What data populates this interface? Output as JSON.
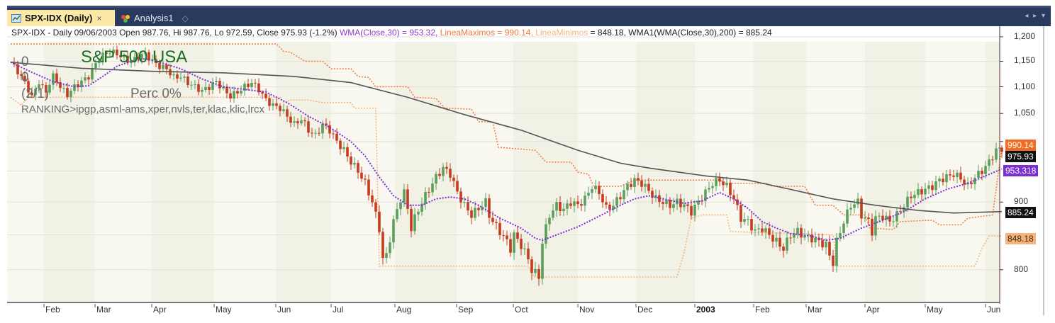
{
  "tabs": [
    {
      "label": "SPX-IDX (Daily)",
      "active": true,
      "icon": "chart-icon",
      "close": "×"
    },
    {
      "label": "Analysis1",
      "active": false,
      "icon": "analysis-icon",
      "pin": "◇"
    }
  ],
  "tab_nav": {
    "left": "◂",
    "right": "▸",
    "menu": "▾"
  },
  "legend": {
    "summary": "SPX-IDX - Daily 09/06/2003 Open 987.76, Hi 987.76, Lo 972.59, Close 975.93 (-1.2%)",
    "wma": "WMA(Close,30) = 953.32,",
    "lmax": "LineaMaximos = 990.14,",
    "lmin": "LineaMinimos",
    "lmin_val": "= 848.18, WMA1(WMA(Close,30),200) = 885.24"
  },
  "overlay": {
    "title": "S&P 500 USA",
    "zero1": "0",
    "zero2": "0",
    "ratio": "(2/1)",
    "perc": "Perc 0%",
    "ranking": "RANKING>ipgp,asml-ams,xper,nvls,ter,klac,klic,lrcx"
  },
  "colors": {
    "up": "#5c9e5c",
    "down": "#c43c1c",
    "wma": "#7b2fd0",
    "lmax": "#f07a3c",
    "lmin": "#f7b27a",
    "wma1": "#555555",
    "tabbar": "#2a3a5e",
    "active_tab": "#fce9a6"
  },
  "price_tags": [
    {
      "name": "linea-maximos-tag",
      "value": "990.14",
      "bg": "#f26b21",
      "fg": "#ffffff",
      "price": 990.14
    },
    {
      "name": "close-tag",
      "value": "975.93",
      "bg": "#111111",
      "fg": "#ffffff",
      "price": 975.93
    },
    {
      "name": "wma-tag",
      "value": "953.318",
      "bg": "#7b2fd0",
      "fg": "#ffffff",
      "price": 953.318
    },
    {
      "name": "wma1-tag",
      "value": "885.24",
      "bg": "#111111",
      "fg": "#ffffff",
      "price": 885.24
    },
    {
      "name": "linea-minimos-tag",
      "value": "848.18",
      "bg": "#f7b27a",
      "fg": "#3a2a10",
      "price": 848.18
    }
  ],
  "chart_data": {
    "type": "candlestick",
    "title": "S&P 500 USA",
    "symbol": "SPX-IDX",
    "interval": "Daily",
    "yaxis": {
      "ticks": [
        1200,
        1150,
        1100,
        1050,
        1000,
        900,
        800
      ],
      "tick_labels": [
        "1,200",
        "1,150",
        "1,100",
        "1,050",
        "",
        "900",
        "800"
      ],
      "range": [
        760,
        1210
      ]
    },
    "xaxis": {
      "tick_labels": [
        "Feb",
        "Mar",
        "Apr",
        "May",
        "Jun",
        "Jul",
        "Aug",
        "Sep",
        "Oct",
        "Nov",
        "Dec",
        "2003",
        "Feb",
        "Mar",
        "Apr",
        "May",
        "Jun"
      ]
    },
    "last_bar": {
      "date": "09/06/2003",
      "open": 987.76,
      "high": 987.76,
      "low": 972.59,
      "close": 975.93,
      "change_pct": -1.2
    },
    "series": [
      {
        "name": "WMA(Close,30)",
        "last": 953.32,
        "style": "dotted",
        "color": "#7b2fd0"
      },
      {
        "name": "LineaMaximos",
        "last": 990.14,
        "style": "dotted-step",
        "color": "#f07a3c"
      },
      {
        "name": "LineaMinimos",
        "last": 848.18,
        "style": "dotted-step",
        "color": "#f7b27a"
      },
      {
        "name": "WMA1(WMA(Close,30),200)",
        "last": 885.24,
        "style": "solid",
        "color": "#555555"
      }
    ],
    "close_path": [
      [
        0,
        1148
      ],
      [
        10,
        1130
      ],
      [
        20,
        1108
      ],
      [
        25,
        1095
      ],
      [
        30,
        1080
      ],
      [
        35,
        1095
      ],
      [
        40,
        1110
      ],
      [
        45,
        1098
      ],
      [
        50,
        1090
      ],
      [
        55,
        1108
      ],
      [
        60,
        1120
      ],
      [
        65,
        1112
      ],
      [
        70,
        1100
      ],
      [
        75,
        1092
      ],
      [
        80,
        1085
      ],
      [
        90,
        1100
      ],
      [
        100,
        1110
      ],
      [
        110,
        1120
      ],
      [
        120,
        1145
      ],
      [
        130,
        1162
      ],
      [
        140,
        1170
      ],
      [
        150,
        1165
      ],
      [
        160,
        1155
      ],
      [
        170,
        1148
      ],
      [
        180,
        1160
      ],
      [
        190,
        1165
      ],
      [
        200,
        1150
      ],
      [
        210,
        1140
      ],
      [
        220,
        1135
      ],
      [
        230,
        1118
      ],
      [
        240,
        1120
      ],
      [
        250,
        1108
      ],
      [
        260,
        1100
      ],
      [
        270,
        1092
      ],
      [
        280,
        1100
      ],
      [
        290,
        1110
      ],
      [
        300,
        1095
      ],
      [
        310,
        1082
      ],
      [
        320,
        1090
      ],
      [
        330,
        1100
      ],
      [
        340,
        1108
      ],
      [
        350,
        1095
      ],
      [
        360,
        1075
      ],
      [
        370,
        1065
      ],
      [
        380,
        1060
      ],
      [
        390,
        1045
      ],
      [
        400,
        1030
      ],
      [
        410,
        1040
      ],
      [
        420,
        1020
      ],
      [
        430,
        1010
      ],
      [
        440,
        1030
      ],
      [
        450,
        1020
      ],
      [
        460,
        1000
      ],
      [
        470,
        985
      ],
      [
        480,
        965
      ],
      [
        490,
        950
      ],
      [
        500,
        930
      ],
      [
        510,
        900
      ],
      [
        520,
        860
      ],
      [
        525,
        815
      ],
      [
        530,
        820
      ],
      [
        540,
        870
      ],
      [
        550,
        905
      ],
      [
        555,
        915
      ],
      [
        560,
        890
      ],
      [
        565,
        860
      ],
      [
        570,
        875
      ],
      [
        580,
        900
      ],
      [
        590,
        920
      ],
      [
        600,
        940
      ],
      [
        610,
        955
      ],
      [
        620,
        945
      ],
      [
        630,
        915
      ],
      [
        640,
        895
      ],
      [
        650,
        880
      ],
      [
        660,
        890
      ],
      [
        670,
        900
      ],
      [
        675,
        880
      ],
      [
        680,
        870
      ],
      [
        690,
        855
      ],
      [
        700,
        840
      ],
      [
        705,
        830
      ],
      [
        710,
        850
      ],
      [
        720,
        835
      ],
      [
        730,
        815
      ],
      [
        735,
        800
      ],
      [
        745,
        790
      ],
      [
        750,
        840
      ],
      [
        760,
        880
      ],
      [
        770,
        895
      ],
      [
        780,
        888
      ],
      [
        790,
        900
      ],
      [
        800,
        895
      ],
      [
        810,
        905
      ],
      [
        820,
        925
      ],
      [
        830,
        915
      ],
      [
        840,
        890
      ],
      [
        850,
        895
      ],
      [
        860,
        910
      ],
      [
        870,
        925
      ],
      [
        880,
        935
      ],
      [
        890,
        930
      ],
      [
        900,
        918
      ],
      [
        910,
        905
      ],
      [
        920,
        900
      ],
      [
        930,
        895
      ],
      [
        940,
        900
      ],
      [
        950,
        895
      ],
      [
        960,
        885
      ],
      [
        970,
        900
      ],
      [
        980,
        915
      ],
      [
        990,
        930
      ],
      [
        1000,
        935
      ],
      [
        1010,
        925
      ],
      [
        1020,
        905
      ],
      [
        1030,
        875
      ],
      [
        1040,
        870
      ],
      [
        1050,
        855
      ],
      [
        1060,
        860
      ],
      [
        1070,
        850
      ],
      [
        1080,
        840
      ],
      [
        1090,
        830
      ],
      [
        1100,
        850
      ],
      [
        1110,
        855
      ],
      [
        1120,
        848
      ],
      [
        1130,
        845
      ],
      [
        1140,
        840
      ],
      [
        1150,
        835
      ],
      [
        1155,
        820
      ],
      [
        1160,
        810
      ],
      [
        1165,
        840
      ],
      [
        1175,
        870
      ],
      [
        1185,
        895
      ],
      [
        1195,
        900
      ],
      [
        1200,
        880
      ],
      [
        1210,
        870
      ],
      [
        1215,
        855
      ],
      [
        1220,
        875
      ],
      [
        1230,
        878
      ],
      [
        1240,
        870
      ],
      [
        1250,
        880
      ],
      [
        1260,
        895
      ],
      [
        1270,
        910
      ],
      [
        1280,
        915
      ],
      [
        1290,
        920
      ],
      [
        1300,
        925
      ],
      [
        1310,
        935
      ],
      [
        1320,
        940
      ],
      [
        1330,
        945
      ],
      [
        1340,
        938
      ],
      [
        1350,
        925
      ],
      [
        1360,
        940
      ],
      [
        1370,
        950
      ],
      [
        1380,
        965
      ],
      [
        1390,
        985
      ],
      [
        1395,
        987
      ],
      [
        1398,
        976
      ]
    ],
    "wma_path": [
      [
        0,
        1148
      ],
      [
        30,
        1128
      ],
      [
        60,
        1110
      ],
      [
        90,
        1100
      ],
      [
        110,
        1102
      ],
      [
        130,
        1120
      ],
      [
        150,
        1140
      ],
      [
        170,
        1150
      ],
      [
        190,
        1155
      ],
      [
        210,
        1148
      ],
      [
        240,
        1135
      ],
      [
        270,
        1115
      ],
      [
        300,
        1100
      ],
      [
        330,
        1095
      ],
      [
        360,
        1090
      ],
      [
        390,
        1070
      ],
      [
        420,
        1045
      ],
      [
        450,
        1025
      ],
      [
        480,
        1000
      ],
      [
        500,
        975
      ],
      [
        520,
        940
      ],
      [
        540,
        910
      ],
      [
        560,
        895
      ],
      [
        580,
        895
      ],
      [
        600,
        905
      ],
      [
        620,
        908
      ],
      [
        640,
        905
      ],
      [
        660,
        895
      ],
      [
        690,
        875
      ],
      [
        720,
        860
      ],
      [
        740,
        845
      ],
      [
        750,
        842
      ],
      [
        770,
        850
      ],
      [
        800,
        862
      ],
      [
        830,
        878
      ],
      [
        860,
        895
      ],
      [
        880,
        905
      ],
      [
        900,
        910
      ],
      [
        920,
        905
      ],
      [
        950,
        898
      ],
      [
        975,
        902
      ],
      [
        1000,
        915
      ],
      [
        1020,
        905
      ],
      [
        1040,
        890
      ],
      [
        1060,
        870
      ],
      [
        1080,
        860
      ],
      [
        1100,
        852
      ],
      [
        1130,
        848
      ],
      [
        1150,
        842
      ],
      [
        1170,
        845
      ],
      [
        1200,
        860
      ],
      [
        1230,
        872
      ],
      [
        1260,
        885
      ],
      [
        1290,
        905
      ],
      [
        1320,
        920
      ],
      [
        1350,
        930
      ],
      [
        1375,
        942
      ],
      [
        1398,
        953.3
      ]
    ],
    "wma1_path": [
      [
        0,
        1148
      ],
      [
        100,
        1136
      ],
      [
        200,
        1130
      ],
      [
        300,
        1127
      ],
      [
        400,
        1120
      ],
      [
        480,
        1108
      ],
      [
        560,
        1080
      ],
      [
        640,
        1048
      ],
      [
        720,
        1020
      ],
      [
        800,
        985
      ],
      [
        860,
        963
      ],
      [
        900,
        955
      ],
      [
        980,
        942
      ],
      [
        1040,
        935
      ],
      [
        1100,
        920
      ],
      [
        1160,
        905
      ],
      [
        1220,
        895
      ],
      [
        1280,
        887
      ],
      [
        1330,
        883
      ],
      [
        1398,
        885.24
      ]
    ],
    "lmax_steps": [
      [
        0,
        1185
      ],
      [
        375,
        1185
      ],
      [
        385,
        1170
      ],
      [
        395,
        1168
      ],
      [
        415,
        1150
      ],
      [
        440,
        1150
      ],
      [
        452,
        1135
      ],
      [
        480,
        1135
      ],
      [
        490,
        1120
      ],
      [
        505,
        1118
      ],
      [
        515,
        1100
      ],
      [
        560,
        1100
      ],
      [
        570,
        1080
      ],
      [
        600,
        1078
      ],
      [
        612,
        1060
      ],
      [
        650,
        1058
      ],
      [
        660,
        1035
      ],
      [
        680,
        1035
      ],
      [
        688,
        990
      ],
      [
        740,
        985
      ],
      [
        755,
        965
      ],
      [
        790,
        965
      ],
      [
        800,
        948
      ],
      [
        815,
        945
      ],
      [
        822,
        925
      ],
      [
        860,
        925
      ],
      [
        880,
        935
      ],
      [
        1000,
        935
      ],
      [
        1010,
        930
      ],
      [
        1065,
        930
      ],
      [
        1075,
        925
      ],
      [
        1120,
        925
      ],
      [
        1135,
        895
      ],
      [
        1160,
        895
      ],
      [
        1175,
        880
      ],
      [
        1205,
        880
      ],
      [
        1212,
        860
      ],
      [
        1245,
        858
      ],
      [
        1255,
        870
      ],
      [
        1300,
        872
      ],
      [
        1310,
        865
      ],
      [
        1340,
        865
      ],
      [
        1350,
        875
      ],
      [
        1385,
        880
      ],
      [
        1398,
        990.14
      ]
    ],
    "lmin_steps": [
      [
        0,
        1080
      ],
      [
        15,
        1065
      ],
      [
        25,
        1080
      ],
      [
        30,
        1080
      ],
      [
        380,
        1080
      ],
      [
        385,
        1070
      ],
      [
        395,
        1075
      ],
      [
        420,
        1075
      ],
      [
        440,
        1070
      ],
      [
        480,
        1070
      ],
      [
        485,
        1060
      ],
      [
        515,
        1060
      ],
      [
        520,
        805
      ],
      [
        730,
        805
      ],
      [
        738,
        790
      ],
      [
        940,
        790
      ],
      [
        950,
        825
      ],
      [
        960,
        875
      ],
      [
        975,
        880
      ],
      [
        1010,
        880
      ],
      [
        1015,
        855
      ],
      [
        1160,
        850
      ],
      [
        1165,
        805
      ],
      [
        1360,
        805
      ],
      [
        1370,
        830
      ],
      [
        1380,
        848.18
      ],
      [
        1398,
        848.18
      ]
    ]
  }
}
